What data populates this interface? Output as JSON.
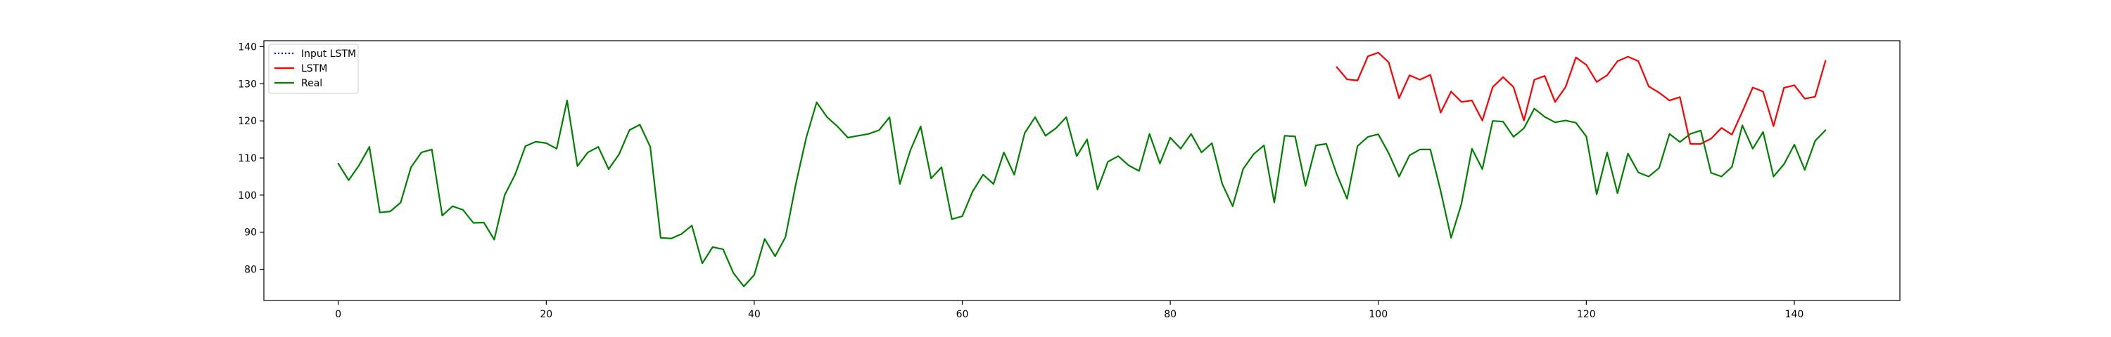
{
  "chart_data": {
    "type": "line",
    "title": "",
    "xlabel": "",
    "ylabel": "",
    "xlim": [
      -7.15,
      150.15
    ],
    "ylim": [
      71.6,
      141.6
    ],
    "xticks": [
      0,
      20,
      40,
      60,
      80,
      100,
      120,
      140
    ],
    "yticks": [
      80,
      90,
      100,
      110,
      120,
      130,
      140
    ],
    "grid": false,
    "legend": {
      "placement": "top-left"
    },
    "series": [
      {
        "name": "Input LSTM",
        "color": "#0000cc",
        "style": "dotted",
        "x": [],
        "y": []
      },
      {
        "name": "LSTM",
        "color": "#ff0000",
        "style": "solid",
        "x": [
          96,
          97,
          98,
          99,
          100,
          101,
          102,
          103,
          104,
          105,
          106,
          107,
          108,
          109,
          110,
          111,
          112,
          113,
          114,
          115,
          116,
          117,
          118,
          119,
          120,
          121,
          122,
          123,
          124,
          125,
          126,
          127,
          128,
          129,
          130,
          131,
          132,
          133,
          134,
          135,
          136,
          137,
          138,
          139,
          140,
          141,
          142,
          143
        ],
        "y": [
          134.5,
          131.2,
          130.9,
          137.4,
          138.4,
          135.8,
          126.1,
          132.3,
          131.1,
          132.4,
          122.2,
          127.9,
          125.1,
          125.5,
          120.1,
          129.1,
          131.8,
          129.1,
          120.1,
          131.1,
          132.1,
          125.1,
          129.1,
          137.1,
          135.1,
          130.5,
          132.3,
          136.1,
          137.3,
          136.1,
          129.3,
          127.6,
          125.5,
          126.4,
          113.8,
          113.8,
          115.2,
          118.1,
          116.3,
          122.5,
          129.0,
          127.9,
          118.6,
          128.9,
          129.6,
          126.0,
          126.5,
          136.2
        ]
      },
      {
        "name": "Real",
        "color": "#008000",
        "style": "solid",
        "x": [
          0,
          1,
          2,
          3,
          4,
          5,
          6,
          7,
          8,
          9,
          10,
          11,
          12,
          13,
          14,
          15,
          16,
          17,
          18,
          19,
          20,
          21,
          22,
          23,
          24,
          25,
          26,
          27,
          28,
          29,
          30,
          31,
          32,
          33,
          34,
          35,
          36,
          37,
          38,
          39,
          40,
          41,
          42,
          43,
          44,
          45,
          46,
          47,
          48,
          49,
          50,
          51,
          52,
          53,
          54,
          55,
          56,
          57,
          58,
          59,
          60,
          61,
          62,
          63,
          64,
          65,
          66,
          67,
          68,
          69,
          70,
          71,
          72,
          73,
          74,
          75,
          76,
          77,
          78,
          79,
          80,
          81,
          82,
          83,
          84,
          85,
          86,
          87,
          88,
          89,
          90,
          91,
          92,
          93,
          94,
          95,
          96,
          97,
          98,
          99,
          100,
          101,
          102,
          103,
          104,
          105,
          106,
          107,
          108,
          109,
          110,
          111,
          112,
          113,
          114,
          115,
          116,
          117,
          118,
          119,
          120,
          121,
          122,
          123,
          124,
          125,
          126,
          127,
          128,
          129,
          130,
          131,
          132,
          133,
          134,
          135,
          136,
          137,
          138,
          139,
          140,
          141,
          142,
          143
        ],
        "y": [
          108.5,
          104.0,
          108.0,
          113.0,
          95.3,
          95.6,
          98.0,
          107.5,
          111.5,
          112.3,
          94.5,
          97.0,
          96.0,
          92.5,
          92.6,
          88.0,
          100.0,
          105.5,
          113.2,
          114.4,
          114.0,
          112.5,
          125.5,
          107.8,
          111.5,
          113.0,
          107.0,
          111.0,
          117.5,
          119.0,
          113.0,
          88.5,
          88.3,
          89.5,
          91.8,
          81.6,
          86.0,
          85.4,
          79.0,
          75.4,
          78.5,
          88.2,
          83.5,
          88.7,
          103.0,
          115.5,
          125.0,
          121.0,
          118.5,
          115.5,
          116.0,
          116.5,
          117.5,
          121.0,
          103.0,
          112.0,
          118.5,
          104.5,
          107.5,
          93.5,
          94.3,
          101.0,
          105.5,
          103.0,
          111.5,
          105.5,
          116.7,
          121.0,
          116.0,
          118.0,
          121.0,
          110.5,
          115.0,
          101.5,
          109.0,
          110.5,
          108.0,
          106.5,
          116.5,
          108.5,
          115.5,
          112.5,
          116.5,
          111.5,
          114.0,
          103.0,
          97.0,
          107.0,
          111.0,
          113.4,
          98.0,
          116.0,
          115.8,
          102.5,
          113.4,
          113.8,
          105.7,
          99.0,
          113.2,
          115.7,
          116.4,
          111.3,
          105.0,
          110.7,
          112.3,
          112.3,
          101.1,
          88.5,
          97.7,
          112.5,
          107.0,
          120.0,
          119.8,
          115.7,
          118.0,
          123.3,
          121.1,
          119.6,
          120.1,
          119.5,
          115.8,
          100.2,
          111.5,
          100.5,
          111.2,
          106.1,
          105.0,
          107.3,
          116.5,
          114.3,
          116.5,
          117.4,
          106.0,
          105.0,
          107.6,
          118.8,
          112.5,
          117.0,
          105.0,
          108.3,
          113.6,
          106.8,
          114.6,
          117.5
        ]
      }
    ]
  }
}
